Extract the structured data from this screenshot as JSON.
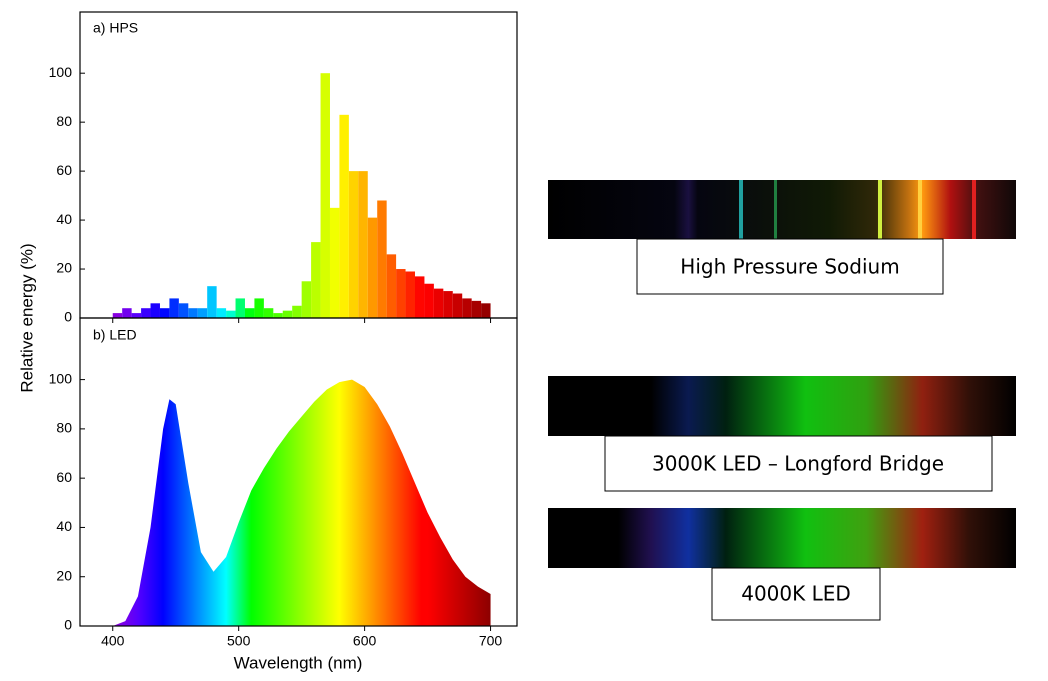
{
  "axis_labels": {
    "y": "Relative energy (%)",
    "x": "Wavelength (nm)"
  },
  "chart_data": [
    {
      "type": "histogram",
      "title": "a) HPS",
      "bins": [
        400,
        407.5,
        415,
        422.5,
        430,
        437.5,
        445,
        452.5,
        460,
        467.5,
        475,
        482.5,
        490,
        497.5,
        505,
        512.5,
        520,
        527.5,
        535,
        542.5,
        550,
        557.5,
        565,
        572.5,
        580,
        587.5,
        595,
        602.5,
        610,
        617.5,
        625,
        632.5,
        640,
        647.5,
        655,
        662.5,
        670,
        677.5,
        685,
        692.5,
        700
      ],
      "values": [
        2,
        4,
        2,
        4,
        6,
        4,
        8,
        6,
        4,
        4,
        13,
        4,
        3,
        8,
        4,
        8,
        4,
        2,
        3,
        5,
        15,
        31,
        100,
        45,
        83,
        60,
        60,
        41,
        48,
        26,
        20,
        19,
        17,
        14,
        12,
        11,
        10,
        8,
        7,
        6
      ],
      "xlim": [
        374,
        721
      ],
      "ylim": [
        0,
        125
      ],
      "yticks": [
        0,
        20,
        40,
        60,
        80,
        100
      ]
    },
    {
      "type": "area",
      "title": "b) LED",
      "x": [
        400,
        410,
        420,
        430,
        440,
        445,
        450,
        460,
        470,
        480,
        490,
        500,
        510,
        520,
        530,
        540,
        550,
        560,
        570,
        580,
        590,
        600,
        610,
        620,
        630,
        640,
        650,
        660,
        670,
        680,
        690,
        700
      ],
      "values": [
        0,
        2,
        12,
        40,
        80,
        92,
        90,
        58,
        30,
        22,
        28,
        42,
        55,
        64,
        72,
        79,
        85,
        91,
        96,
        99,
        100,
        97,
        90,
        81,
        70,
        58,
        46,
        36,
        27,
        20,
        16,
        13
      ],
      "xlim": [
        374,
        721
      ],
      "ylim": [
        0,
        125
      ],
      "yticks": [
        0,
        20,
        40,
        60,
        80,
        100
      ],
      "xticks": [
        400,
        500,
        600,
        700
      ]
    }
  ],
  "spectra": [
    {
      "label": "High Pressure Sodium"
    },
    {
      "label": "3000K LED – Longford Bridge"
    },
    {
      "label": "4000K LED"
    }
  ]
}
